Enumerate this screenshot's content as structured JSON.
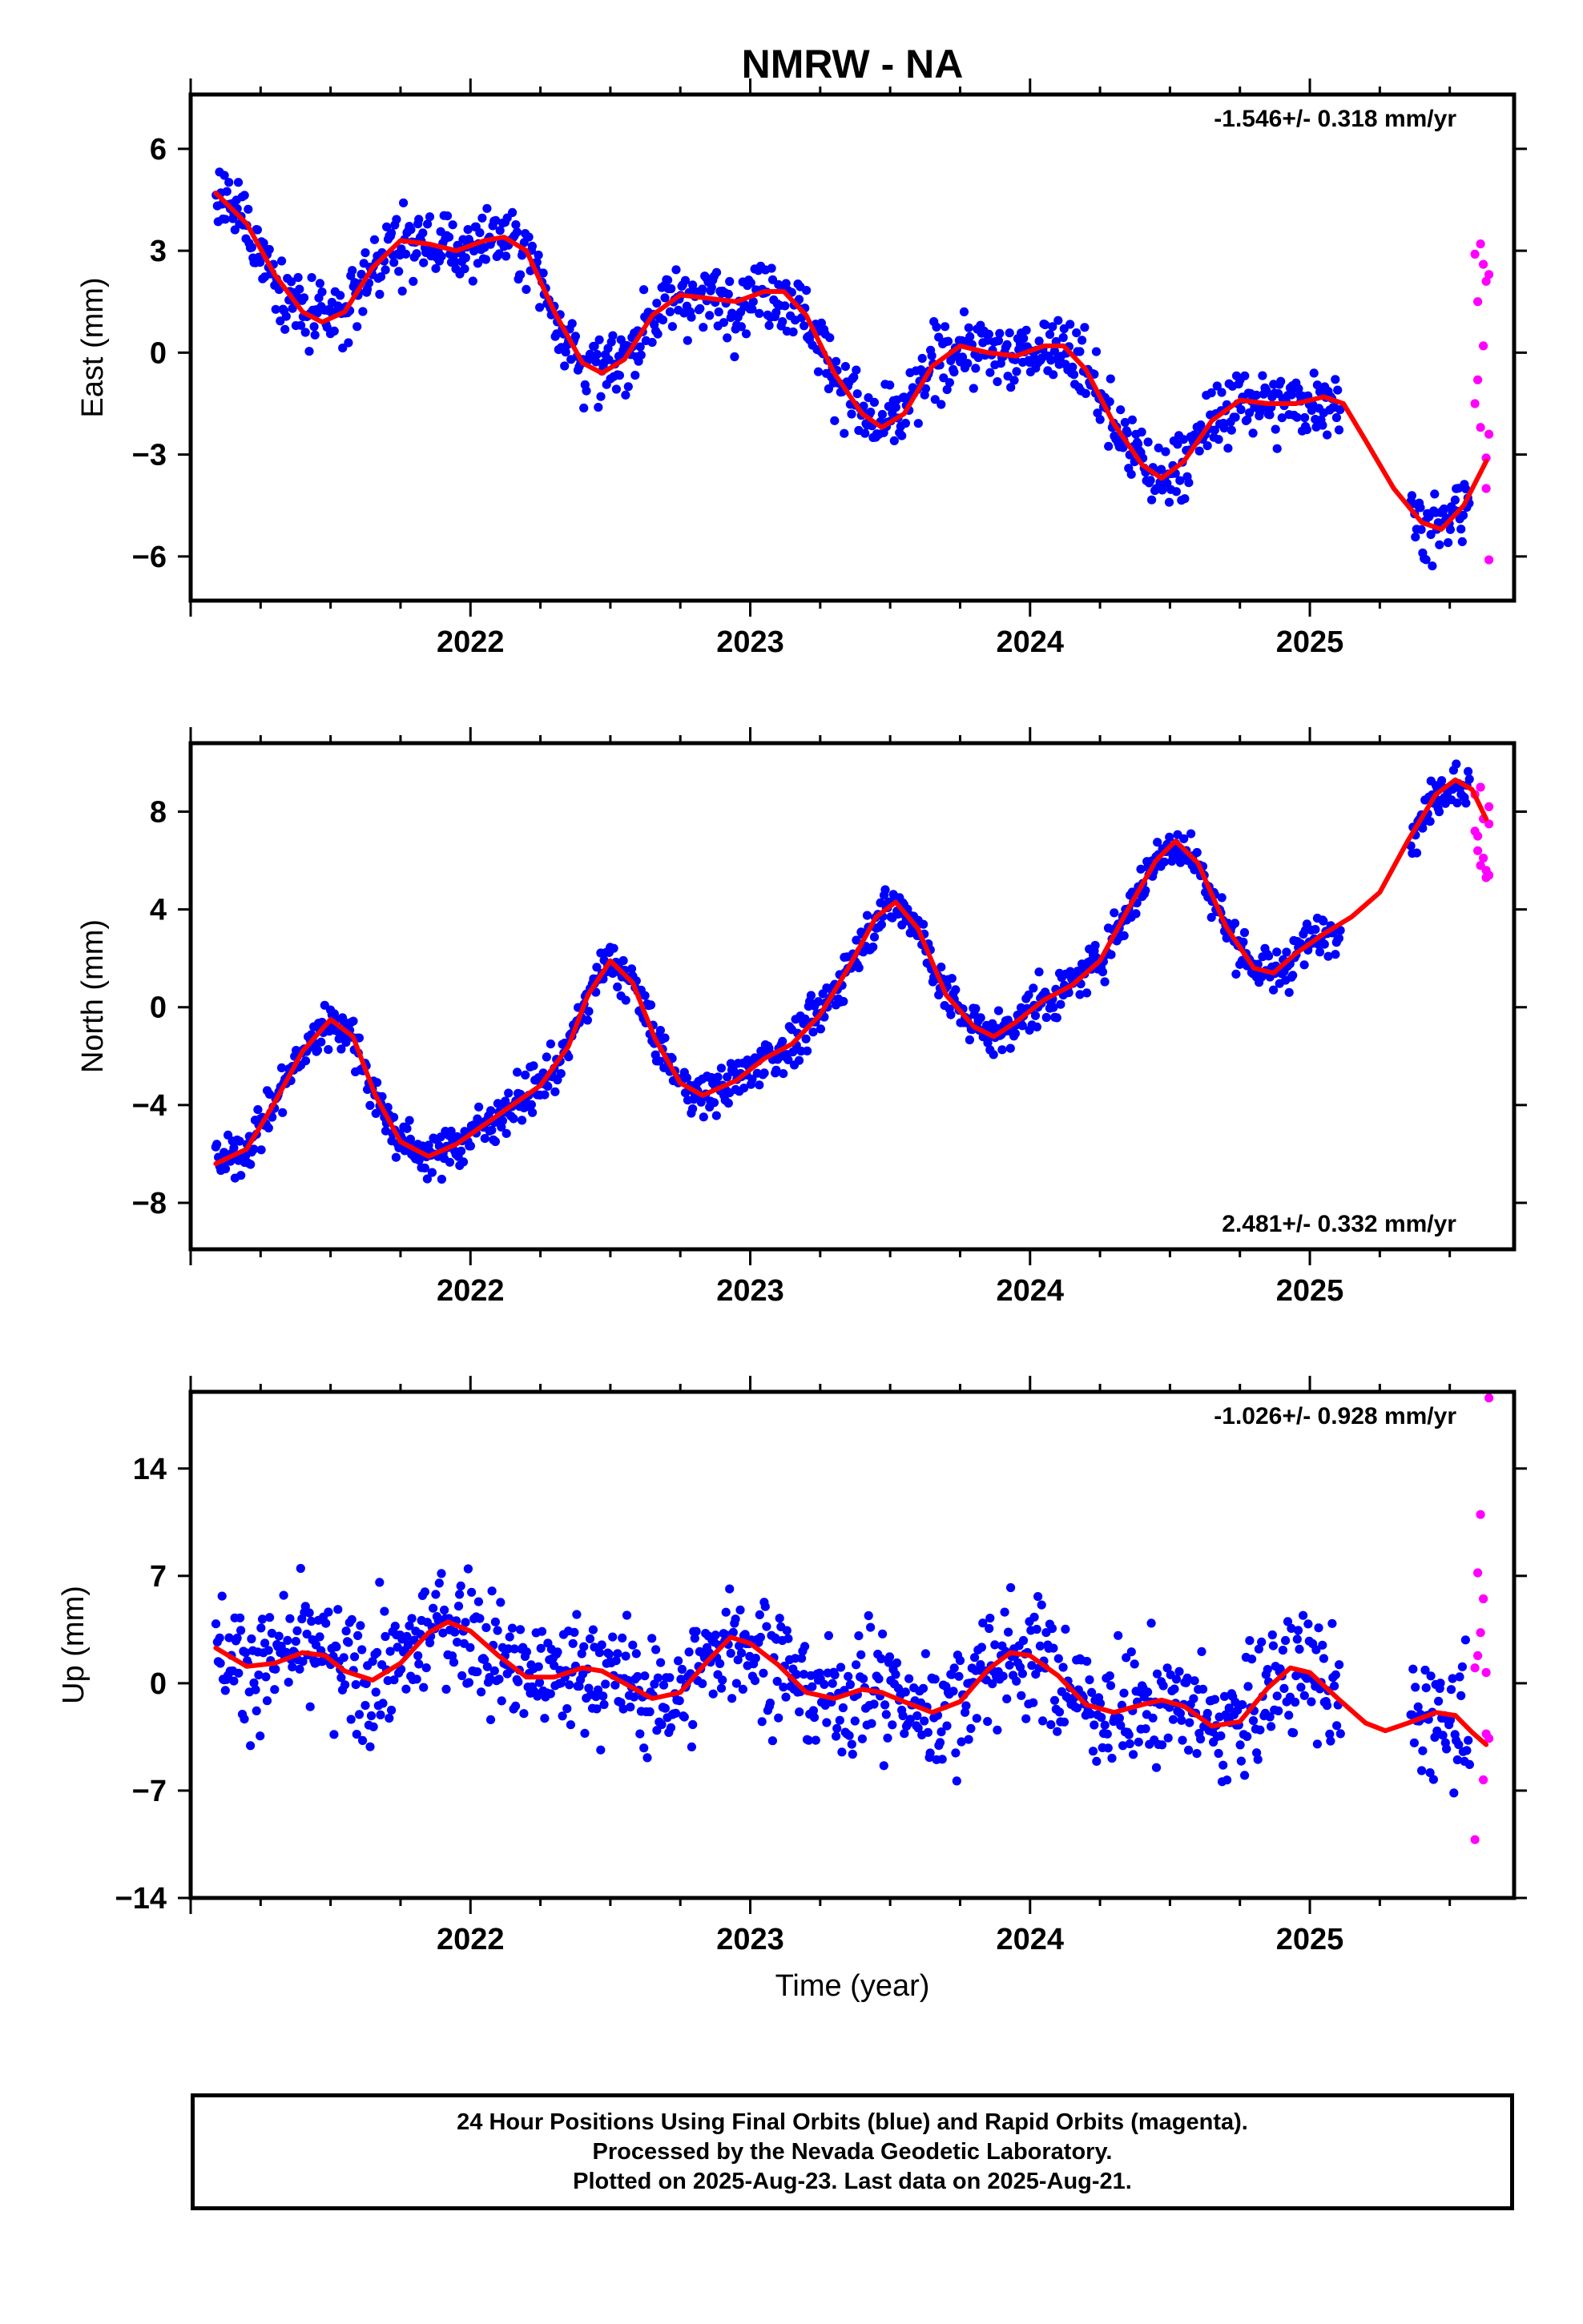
{
  "title": "NMRW - NA",
  "colors": {
    "final": "#0000ff",
    "rapid": "#ff00ff",
    "model": "#ff0000",
    "axis": "#000000"
  },
  "chart_data": [
    {
      "type": "scatter",
      "ylabel": "East (mm)",
      "rate": "-1.546+/- 0.318 mm/yr",
      "rate_position": "top-right",
      "xlim": [
        2021.0,
        2025.73
      ],
      "ylim": [
        -7.3,
        7.6
      ],
      "xticks": [
        2022,
        2023,
        2024,
        2025
      ],
      "xtick_labels": [
        "2022",
        "2023",
        "2024",
        "2025"
      ],
      "yticks": [
        -6,
        -3,
        0,
        3,
        6
      ],
      "ytick_labels": [
        "−6",
        "−3",
        "0",
        "3",
        "6"
      ],
      "model_curve": [
        [
          2021.09,
          4.7
        ],
        [
          2021.2,
          3.8
        ],
        [
          2021.3,
          2.3
        ],
        [
          2021.4,
          1.2
        ],
        [
          2021.47,
          0.9
        ],
        [
          2021.55,
          1.2
        ],
        [
          2021.65,
          2.5
        ],
        [
          2021.75,
          3.3
        ],
        [
          2021.85,
          3.2
        ],
        [
          2021.95,
          3.0
        ],
        [
          2022.05,
          3.3
        ],
        [
          2022.12,
          3.4
        ],
        [
          2022.2,
          3.0
        ],
        [
          2022.3,
          1.2
        ],
        [
          2022.4,
          -0.3
        ],
        [
          2022.47,
          -0.6
        ],
        [
          2022.55,
          -0.2
        ],
        [
          2022.65,
          1.1
        ],
        [
          2022.75,
          1.7
        ],
        [
          2022.85,
          1.6
        ],
        [
          2022.95,
          1.5
        ],
        [
          2023.05,
          1.8
        ],
        [
          2023.12,
          1.8
        ],
        [
          2023.2,
          1.1
        ],
        [
          2023.3,
          -0.6
        ],
        [
          2023.4,
          -1.8
        ],
        [
          2023.47,
          -2.2
        ],
        [
          2023.55,
          -1.8
        ],
        [
          2023.65,
          -0.4
        ],
        [
          2023.75,
          0.2
        ],
        [
          2023.85,
          0.0
        ],
        [
          2023.95,
          -0.1
        ],
        [
          2024.05,
          0.2
        ],
        [
          2024.12,
          0.2
        ],
        [
          2024.2,
          -0.5
        ],
        [
          2024.3,
          -2.1
        ],
        [
          2024.4,
          -3.3
        ],
        [
          2024.47,
          -3.7
        ],
        [
          2024.55,
          -3.2
        ],
        [
          2024.65,
          -2.0
        ],
        [
          2024.75,
          -1.4
        ],
        [
          2024.85,
          -1.5
        ],
        [
          2024.95,
          -1.5
        ],
        [
          2025.05,
          -1.3
        ],
        [
          2025.12,
          -1.5
        ],
        [
          2025.2,
          -2.6
        ],
        [
          2025.3,
          -4.0
        ],
        [
          2025.4,
          -5.0
        ],
        [
          2025.47,
          -5.2
        ],
        [
          2025.55,
          -4.5
        ],
        [
          2025.63,
          -3.2
        ]
      ],
      "final_points_model": "scatter around model curve, sigma 1.0 mm, 2021.09–2025.57, gap 2025.11–2025.36",
      "final_count": 1050,
      "rapid_points": [
        [
          2025.59,
          -1.5
        ],
        [
          2025.59,
          2.9
        ],
        [
          2025.6,
          -0.8
        ],
        [
          2025.6,
          1.5
        ],
        [
          2025.61,
          -2.2
        ],
        [
          2025.61,
          3.2
        ],
        [
          2025.62,
          0.2
        ],
        [
          2025.62,
          2.6
        ],
        [
          2025.63,
          -3.1
        ],
        [
          2025.63,
          -4.0
        ],
        [
          2025.63,
          2.1
        ],
        [
          2025.64,
          -6.1
        ],
        [
          2025.64,
          2.3
        ],
        [
          2025.64,
          -2.4
        ]
      ]
    },
    {
      "type": "scatter",
      "ylabel": "North (mm)",
      "rate": "2.481+/- 0.332 mm/yr",
      "rate_position": "bottom-right",
      "xlim": [
        2021.0,
        2025.73
      ],
      "ylim": [
        -9.9,
        10.8
      ],
      "xticks": [
        2022,
        2023,
        2024,
        2025
      ],
      "xtick_labels": [
        "2022",
        "2023",
        "2024",
        "2025"
      ],
      "yticks": [
        -8,
        -4,
        0,
        4,
        8
      ],
      "ytick_labels": [
        "−8",
        "−4",
        "0",
        "4",
        "8"
      ],
      "model_curve": [
        [
          2021.09,
          -6.4
        ],
        [
          2021.2,
          -5.8
        ],
        [
          2021.3,
          -3.9
        ],
        [
          2021.4,
          -1.8
        ],
        [
          2021.5,
          -0.5
        ],
        [
          2021.58,
          -1.2
        ],
        [
          2021.66,
          -3.6
        ],
        [
          2021.75,
          -5.5
        ],
        [
          2021.85,
          -6.1
        ],
        [
          2021.95,
          -5.6
        ],
        [
          2022.05,
          -4.8
        ],
        [
          2022.15,
          -4.0
        ],
        [
          2022.25,
          -3.2
        ],
        [
          2022.35,
          -1.6
        ],
        [
          2022.42,
          0.5
        ],
        [
          2022.5,
          1.9
        ],
        [
          2022.58,
          1.0
        ],
        [
          2022.66,
          -1.3
        ],
        [
          2022.75,
          -3.1
        ],
        [
          2022.83,
          -3.6
        ],
        [
          2022.95,
          -3.0
        ],
        [
          2023.05,
          -2.1
        ],
        [
          2023.15,
          -1.5
        ],
        [
          2023.25,
          -0.3
        ],
        [
          2023.35,
          1.6
        ],
        [
          2023.45,
          3.7
        ],
        [
          2023.52,
          4.3
        ],
        [
          2023.6,
          3.2
        ],
        [
          2023.7,
          0.5
        ],
        [
          2023.8,
          -0.8
        ],
        [
          2023.87,
          -1.2
        ],
        [
          2023.95,
          -0.6
        ],
        [
          2024.05,
          0.3
        ],
        [
          2024.15,
          0.9
        ],
        [
          2024.25,
          1.9
        ],
        [
          2024.35,
          4.0
        ],
        [
          2024.45,
          6.0
        ],
        [
          2024.52,
          6.8
        ],
        [
          2024.6,
          5.9
        ],
        [
          2024.7,
          3.3
        ],
        [
          2024.8,
          1.6
        ],
        [
          2024.87,
          1.4
        ],
        [
          2024.95,
          2.2
        ],
        [
          2025.05,
          3.0
        ],
        [
          2025.15,
          3.7
        ],
        [
          2025.25,
          4.7
        ],
        [
          2025.35,
          6.8
        ],
        [
          2025.45,
          8.7
        ],
        [
          2025.52,
          9.3
        ],
        [
          2025.58,
          8.9
        ],
        [
          2025.63,
          7.7
        ]
      ],
      "final_points_model": "scatter around model curve, sigma 0.9 mm, 2021.09–2025.57, gap 2025.11–2025.36",
      "final_count": 1050,
      "rapid_points": [
        [
          2025.59,
          7.2
        ],
        [
          2025.59,
          8.7
        ],
        [
          2025.6,
          6.4
        ],
        [
          2025.6,
          7.0
        ],
        [
          2025.61,
          9.0
        ],
        [
          2025.61,
          5.8
        ],
        [
          2025.62,
          6.1
        ],
        [
          2025.62,
          7.7
        ],
        [
          2025.63,
          5.6
        ],
        [
          2025.63,
          5.3
        ],
        [
          2025.64,
          7.5
        ],
        [
          2025.64,
          5.4
        ],
        [
          2025.64,
          8.2
        ]
      ]
    },
    {
      "type": "scatter",
      "ylabel": "Up (mm)",
      "rate": "-1.026+/- 0.928 mm/yr",
      "rate_position": "top-right",
      "xlabel": "Time (year)",
      "xlim": [
        2021.0,
        2025.73
      ],
      "ylim": [
        -14.0,
        19.0
      ],
      "xticks": [
        2022,
        2023,
        2024,
        2025
      ],
      "xtick_labels": [
        "2022",
        "2023",
        "2024",
        "2025"
      ],
      "yticks": [
        -14,
        -7,
        0,
        7,
        14
      ],
      "ytick_labels": [
        "−14",
        "−7",
        "0",
        "7",
        "14"
      ],
      "model_curve": [
        [
          2021.09,
          2.3
        ],
        [
          2021.2,
          1.1
        ],
        [
          2021.3,
          1.3
        ],
        [
          2021.4,
          2.0
        ],
        [
          2021.48,
          1.8
        ],
        [
          2021.55,
          0.8
        ],
        [
          2021.65,
          0.2
        ],
        [
          2021.75,
          1.3
        ],
        [
          2021.85,
          3.3
        ],
        [
          2021.92,
          4.0
        ],
        [
          2022.0,
          3.4
        ],
        [
          2022.1,
          1.8
        ],
        [
          2022.2,
          0.4
        ],
        [
          2022.3,
          0.4
        ],
        [
          2022.4,
          1.0
        ],
        [
          2022.47,
          0.8
        ],
        [
          2022.55,
          0.0
        ],
        [
          2022.65,
          -1.0
        ],
        [
          2022.75,
          -0.6
        ],
        [
          2022.85,
          1.5
        ],
        [
          2022.93,
          3.0
        ],
        [
          2023.0,
          2.6
        ],
        [
          2023.1,
          1.2
        ],
        [
          2023.2,
          -0.6
        ],
        [
          2023.3,
          -1.0
        ],
        [
          2023.4,
          -0.4
        ],
        [
          2023.47,
          -0.6
        ],
        [
          2023.55,
          -1.2
        ],
        [
          2023.65,
          -1.9
        ],
        [
          2023.75,
          -1.2
        ],
        [
          2023.85,
          0.9
        ],
        [
          2023.93,
          2.0
        ],
        [
          2024.0,
          1.8
        ],
        [
          2024.1,
          0.5
        ],
        [
          2024.2,
          -1.4
        ],
        [
          2024.3,
          -1.9
        ],
        [
          2024.4,
          -1.4
        ],
        [
          2024.47,
          -1.1
        ],
        [
          2024.55,
          -1.5
        ],
        [
          2024.65,
          -2.8
        ],
        [
          2024.75,
          -2.5
        ],
        [
          2024.85,
          -0.3
        ],
        [
          2024.93,
          1.0
        ],
        [
          2025.0,
          0.7
        ],
        [
          2025.1,
          -1.0
        ],
        [
          2025.2,
          -2.6
        ],
        [
          2025.27,
          -3.1
        ],
        [
          2025.35,
          -2.6
        ],
        [
          2025.45,
          -1.9
        ],
        [
          2025.52,
          -2.1
        ],
        [
          2025.58,
          -3.2
        ],
        [
          2025.63,
          -4.0
        ]
      ],
      "final_points_model": "scatter around model curve, sigma 3.8 mm, 2021.09–2025.57, gap 2025.11–2025.36",
      "final_count": 1050,
      "rapid_points": [
        [
          2025.59,
          1.0
        ],
        [
          2025.59,
          -10.2
        ],
        [
          2025.6,
          1.8
        ],
        [
          2025.6,
          7.2
        ],
        [
          2025.61,
          11.0
        ],
        [
          2025.61,
          3.3
        ],
        [
          2025.62,
          -6.3
        ],
        [
          2025.62,
          5.5
        ],
        [
          2025.63,
          0.7
        ],
        [
          2025.63,
          -3.3
        ],
        [
          2025.64,
          18.6
        ],
        [
          2025.64,
          -3.6
        ]
      ]
    }
  ],
  "footer": {
    "line1": "24 Hour Positions Using Final Orbits (blue) and Rapid Orbits (magenta).",
    "line2": "Processed by the Nevada Geodetic Laboratory.",
    "line3": "Plotted on 2025-Aug-23. Last data on 2025-Aug-21."
  }
}
